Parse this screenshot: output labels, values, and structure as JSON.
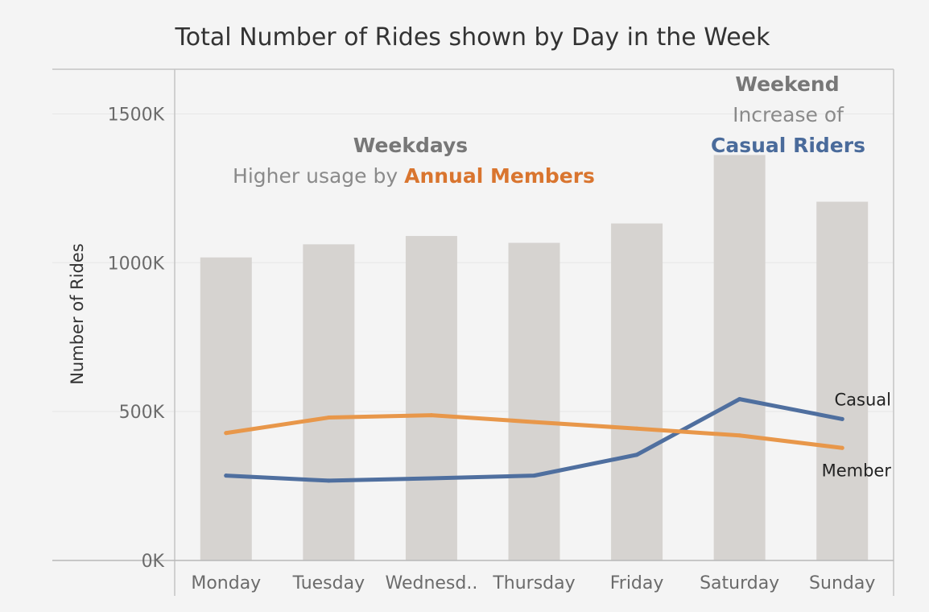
{
  "chart_data": {
    "type": "bar",
    "title": "Total Number of Rides shown by Day in the Week",
    "xlabel": "",
    "ylabel": "Number of Rides",
    "categories": [
      "Monday",
      "Tuesday",
      "Wednesd..",
      "Thursday",
      "Friday",
      "Saturday",
      "Sunday"
    ],
    "ylim": [
      0,
      1650000
    ],
    "yticks": [
      0,
      500000,
      1000000,
      1500000
    ],
    "ytick_labels": [
      "0K",
      "500K",
      "1000K",
      "1500K"
    ],
    "grid": true,
    "series": [
      {
        "name": "",
        "type": "bar",
        "color": "#d6d3d0",
        "values": [
          1018000,
          1062000,
          1090000,
          1067000,
          1132000,
          1362000,
          1205000
        ]
      },
      {
        "name": "Casual",
        "type": "line",
        "color": "#4f6f9f",
        "values": [
          285000,
          268000,
          276000,
          285000,
          355000,
          542000,
          475000
        ]
      },
      {
        "name": "Member",
        "type": "line",
        "color": "#e8974a",
        "values": [
          428000,
          480000,
          488000,
          465000,
          443000,
          420000,
          378000
        ]
      }
    ],
    "annotations": {
      "weekdays": {
        "heading": "Weekdays",
        "line_prefix": "Higher usage by ",
        "highlight": "Annual Members",
        "highlight_color": "#d9752f"
      },
      "weekend": {
        "heading": "Weekend",
        "line": "Increase of",
        "highlight": "Casual Riders",
        "highlight_color": "#4a6b9b"
      }
    }
  }
}
